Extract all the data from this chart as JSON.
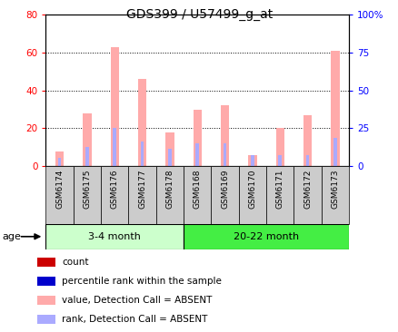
{
  "title": "GDS399 / U57499_g_at",
  "samples": [
    "GSM6174",
    "GSM6175",
    "GSM6176",
    "GSM6177",
    "GSM6178",
    "GSM6168",
    "GSM6169",
    "GSM6170",
    "GSM6171",
    "GSM6172",
    "GSM6173"
  ],
  "value_absent": [
    7.5,
    28,
    63,
    46,
    18,
    30,
    32,
    6,
    20,
    27,
    61
  ],
  "rank_absent": [
    4.5,
    10,
    20,
    13,
    9,
    12,
    12,
    6,
    6,
    6,
    15
  ],
  "ylim_left": [
    0,
    80
  ],
  "ylim_right": [
    0,
    100
  ],
  "yticks_left": [
    0,
    20,
    40,
    60,
    80
  ],
  "yticks_right": [
    0,
    25,
    50,
    75,
    100
  ],
  "yticklabels_left": [
    "0",
    "20",
    "40",
    "60",
    "80"
  ],
  "yticklabels_right": [
    "0",
    "25",
    "50",
    "75",
    "100%"
  ],
  "color_value_absent": "#ffaaaa",
  "color_rank_absent": "#aaaaff",
  "group1_label": "3-4 month",
  "group2_label": "20-22 month",
  "group1_indices": [
    0,
    1,
    2,
    3,
    4
  ],
  "group2_indices": [
    5,
    6,
    7,
    8,
    9,
    10
  ],
  "age_label": "age",
  "group1_bg": "#ccffcc",
  "group2_bg": "#44ee44",
  "sample_bg": "#cccccc",
  "legend_items": [
    {
      "label": "count",
      "color": "#cc0000"
    },
    {
      "label": "percentile rank within the sample",
      "color": "#0000cc"
    },
    {
      "label": "value, Detection Call = ABSENT",
      "color": "#ffaaaa"
    },
    {
      "label": "rank, Detection Call = ABSENT",
      "color": "#aaaaff"
    }
  ],
  "value_bar_width": 0.3,
  "rank_bar_width": 0.12
}
